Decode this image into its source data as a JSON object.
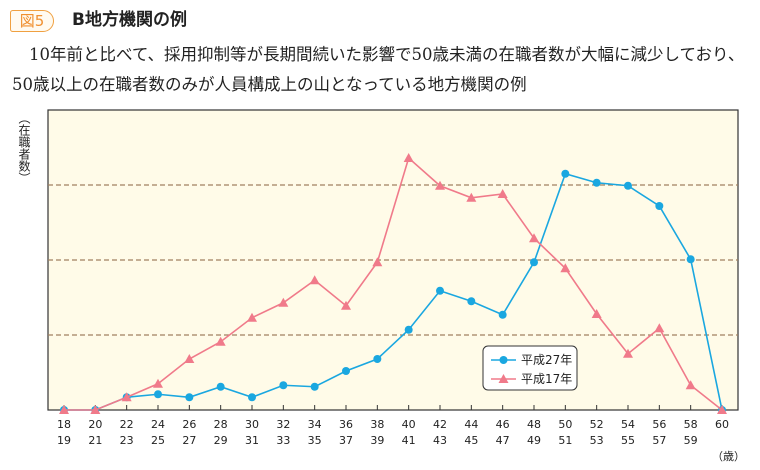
{
  "header": {
    "figure_badge": "図5",
    "title": "B地方機関の例"
  },
  "description": "10年前と比べて、採用抑制等が長期間続いた影響で50歳未満の在職者数が大幅に減少しており、50歳以上の在職者数のみが人員構成上の山となっている地方機関の例",
  "chart_data": {
    "type": "line",
    "ylabel": "（在職者数）",
    "xlabel_unit": "（歳）",
    "categories": [
      [
        "18",
        "19"
      ],
      [
        "20",
        "21"
      ],
      [
        "22",
        "23"
      ],
      [
        "24",
        "25"
      ],
      [
        "26",
        "27"
      ],
      [
        "28",
        "29"
      ],
      [
        "30",
        "31"
      ],
      [
        "32",
        "33"
      ],
      [
        "34",
        "35"
      ],
      [
        "36",
        "37"
      ],
      [
        "38",
        "39"
      ],
      [
        "40",
        "41"
      ],
      [
        "42",
        "43"
      ],
      [
        "44",
        "45"
      ],
      [
        "46",
        "47"
      ],
      [
        "48",
        "49"
      ],
      [
        "50",
        "51"
      ],
      [
        "52",
        "53"
      ],
      [
        "54",
        "55"
      ],
      [
        "56",
        "57"
      ],
      [
        "58",
        "59"
      ],
      [
        "60",
        ""
      ]
    ],
    "ylim": [
      0,
      4
    ],
    "y_ticks_labeled": false,
    "grid": "horizontal dashed",
    "legend_placement": "bottom-center",
    "series": [
      {
        "name": "平成27年",
        "color": "#1aa7e0",
        "marker": "circle",
        "values": [
          0,
          0,
          0.17,
          0.21,
          0.17,
          0.31,
          0.17,
          0.33,
          0.31,
          0.52,
          0.68,
          1.07,
          1.59,
          1.45,
          1.27,
          1.97,
          3.15,
          3.03,
          2.99,
          2.72,
          2.01,
          0
        ]
      },
      {
        "name": "平成17年",
        "color": "#f07a8a",
        "marker": "triangle",
        "values": [
          0,
          0,
          0.17,
          0.35,
          0.68,
          0.91,
          1.23,
          1.43,
          1.73,
          1.39,
          1.97,
          3.36,
          2.99,
          2.83,
          2.88,
          2.29,
          1.89,
          1.28,
          0.75,
          1.09,
          0.33,
          0
        ]
      }
    ],
    "colors": {
      "plot_background": "#fffbe8",
      "grid": "#a08060"
    }
  }
}
